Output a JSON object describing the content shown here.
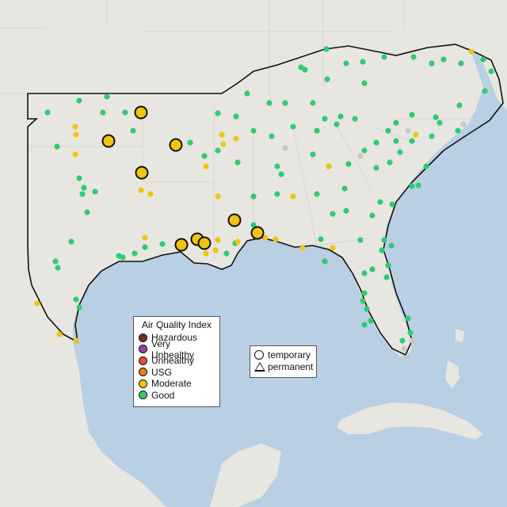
{
  "legend_aqi": {
    "title": "Air Quality Index",
    "items": [
      {
        "label": "Hazardous",
        "color": "#7e2a1a"
      },
      {
        "label": "Very Unhealthy",
        "color": "#8e44ad"
      },
      {
        "label": "Unhealthy",
        "color": "#e74c3c"
      },
      {
        "label": "USG",
        "color": "#e67e22"
      },
      {
        "label": "Moderate",
        "color": "#f1c40f"
      },
      {
        "label": "Good",
        "color": "#2ecc71"
      }
    ]
  },
  "legend_type": {
    "temporary_label": "temporary",
    "permanent_label": "permanent"
  },
  "colors": {
    "land": "#e8e6e1",
    "water": "#b9cfe3",
    "good": "#2ecc71",
    "moderate": "#f1c40f",
    "no_data": "#c8c8c8"
  }
}
